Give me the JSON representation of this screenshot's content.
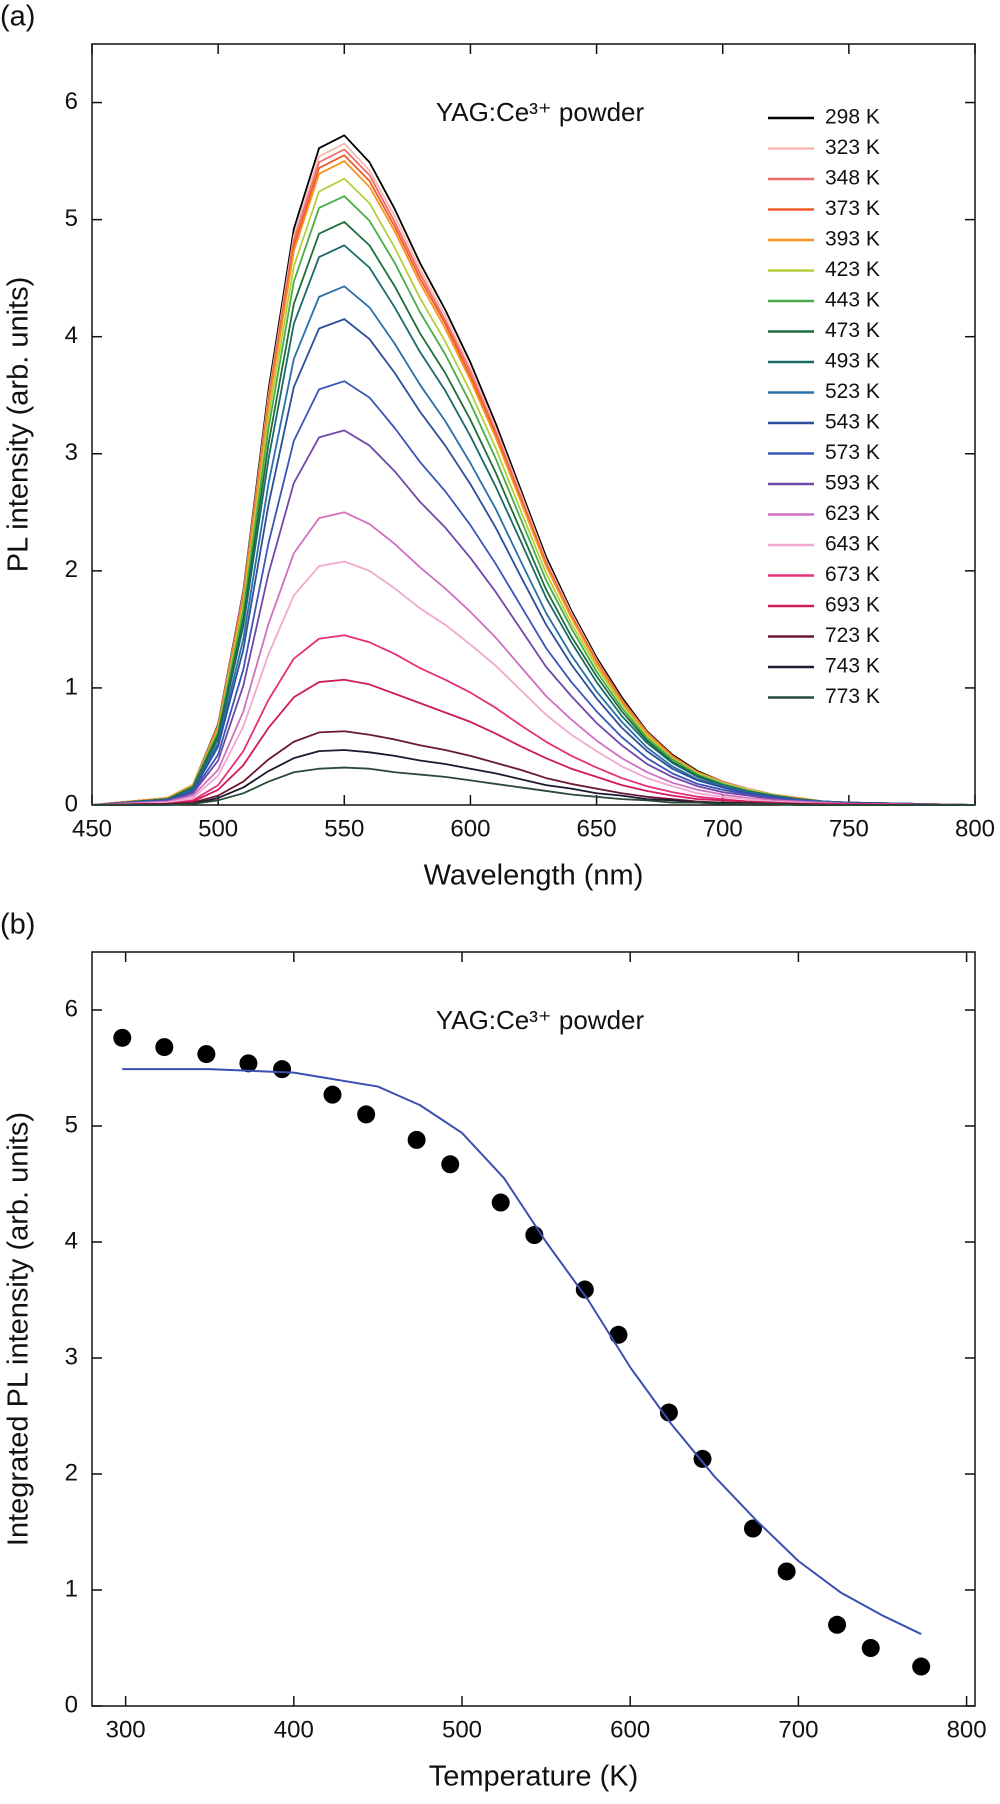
{
  "chart_data": [
    {
      "type": "line",
      "panel_label": "(a)",
      "annotation": "YAG:Ce³⁺ powder",
      "xlabel": "Wavelength (nm)",
      "ylabel": "PL intensity (arb. units)",
      "xlim": [
        450,
        800
      ],
      "ylim": [
        0,
        6.5
      ],
      "xticks": [
        450,
        500,
        550,
        600,
        650,
        700,
        750,
        800
      ],
      "yticks": [
        0,
        1,
        2,
        3,
        4,
        5,
        6
      ],
      "legend": "upper right",
      "x": [
        450,
        480,
        490,
        500,
        510,
        520,
        530,
        540,
        550,
        560,
        570,
        580,
        590,
        600,
        610,
        620,
        630,
        640,
        650,
        660,
        670,
        680,
        690,
        700,
        710,
        720,
        730,
        740,
        750,
        800
      ],
      "series": [
        {
          "name": "298 K",
          "color": "#000000",
          "values": [
            0,
            0.06,
            0.17,
            0.69,
            1.83,
            3.55,
            4.92,
            5.61,
            5.72,
            5.49,
            5.09,
            4.63,
            4.23,
            3.78,
            3.26,
            2.69,
            2.12,
            1.66,
            1.26,
            0.92,
            0.63,
            0.43,
            0.29,
            0.2,
            0.14,
            0.09,
            0.06,
            0.03,
            0.02,
            0
          ]
        },
        {
          "name": "323 K",
          "color": "#f5b9b0",
          "values": [
            0,
            0.06,
            0.17,
            0.68,
            1.81,
            3.5,
            4.86,
            5.54,
            5.65,
            5.42,
            5.03,
            4.58,
            4.18,
            3.73,
            3.22,
            2.66,
            2.09,
            1.64,
            1.24,
            0.9,
            0.62,
            0.42,
            0.28,
            0.2,
            0.14,
            0.09,
            0.06,
            0.03,
            0.02,
            0
          ]
        },
        {
          "name": "348 K",
          "color": "#f06a6a",
          "values": [
            0,
            0.06,
            0.17,
            0.67,
            1.79,
            3.47,
            4.82,
            5.49,
            5.6,
            5.38,
            4.98,
            4.54,
            4.14,
            3.7,
            3.19,
            2.63,
            2.07,
            1.62,
            1.23,
            0.9,
            0.62,
            0.42,
            0.28,
            0.2,
            0.13,
            0.09,
            0.06,
            0.03,
            0.02,
            0
          ]
        },
        {
          "name": "373 K",
          "color": "#f05a28",
          "values": [
            0,
            0.06,
            0.17,
            0.67,
            1.78,
            3.44,
            4.77,
            5.44,
            5.55,
            5.33,
            4.94,
            4.5,
            4.11,
            3.66,
            3.16,
            2.61,
            2.05,
            1.61,
            1.22,
            0.89,
            0.61,
            0.42,
            0.28,
            0.19,
            0.13,
            0.09,
            0.06,
            0.03,
            0.02,
            0
          ]
        },
        {
          "name": "393 K",
          "color": "#f7941d",
          "values": [
            0,
            0.06,
            0.17,
            0.66,
            1.76,
            3.41,
            4.73,
            5.39,
            5.5,
            5.28,
            4.9,
            4.46,
            4.07,
            3.63,
            3.14,
            2.59,
            2.04,
            1.6,
            1.21,
            0.88,
            0.61,
            0.41,
            0.28,
            0.19,
            0.13,
            0.09,
            0.06,
            0.03,
            0.02,
            0
          ]
        },
        {
          "name": "423 K",
          "color": "#b5cf3b",
          "values": [
            0,
            0.05,
            0.16,
            0.64,
            1.71,
            3.32,
            4.6,
            5.24,
            5.35,
            5.14,
            4.76,
            4.33,
            3.96,
            3.53,
            3.05,
            2.51,
            1.98,
            1.55,
            1.18,
            0.86,
            0.59,
            0.4,
            0.27,
            0.19,
            0.13,
            0.09,
            0.05,
            0.03,
            0.02,
            0
          ]
        },
        {
          "name": "443 K",
          "color": "#4aac48",
          "values": [
            0,
            0.05,
            0.16,
            0.62,
            1.66,
            3.22,
            4.47,
            5.1,
            5.2,
            4.99,
            4.63,
            4.21,
            3.85,
            3.43,
            2.96,
            2.44,
            1.92,
            1.51,
            1.14,
            0.83,
            0.57,
            0.39,
            0.26,
            0.18,
            0.12,
            0.08,
            0.05,
            0.03,
            0.02,
            0
          ]
        },
        {
          "name": "473 K",
          "color": "#1f6e3a",
          "values": [
            0,
            0.05,
            0.15,
            0.6,
            1.59,
            3.09,
            4.28,
            4.88,
            4.98,
            4.78,
            4.43,
            4.03,
            3.69,
            3.29,
            2.84,
            2.34,
            1.84,
            1.44,
            1.1,
            0.8,
            0.55,
            0.37,
            0.25,
            0.17,
            0.12,
            0.08,
            0.05,
            0.03,
            0.02,
            0
          ]
        },
        {
          "name": "493 K",
          "color": "#1a6a6a",
          "values": [
            0,
            0.05,
            0.14,
            0.57,
            1.53,
            2.96,
            4.11,
            4.68,
            4.78,
            4.59,
            4.25,
            3.87,
            3.54,
            3.15,
            2.72,
            2.25,
            1.77,
            1.39,
            1.05,
            0.76,
            0.53,
            0.36,
            0.24,
            0.17,
            0.11,
            0.08,
            0.05,
            0.03,
            0.02,
            0
          ]
        },
        {
          "name": "523 K",
          "color": "#2a6fa8",
          "values": [
            0,
            0.04,
            0.13,
            0.53,
            1.42,
            2.75,
            3.81,
            4.34,
            4.43,
            4.25,
            3.94,
            3.59,
            3.28,
            2.92,
            2.53,
            2.08,
            1.64,
            1.28,
            0.97,
            0.71,
            0.49,
            0.33,
            0.22,
            0.16,
            0.11,
            0.07,
            0.04,
            0.03,
            0.02,
            0
          ]
        },
        {
          "name": "543 K",
          "color": "#2b4f9a",
          "values": [
            0,
            0.04,
            0.12,
            0.5,
            1.33,
            2.57,
            3.57,
            4.07,
            4.15,
            3.98,
            3.69,
            3.36,
            3.07,
            2.74,
            2.37,
            1.95,
            1.54,
            1.2,
            0.91,
            0.66,
            0.46,
            0.31,
            0.21,
            0.15,
            0.1,
            0.07,
            0.04,
            0.02,
            0.02,
            0
          ]
        },
        {
          "name": "573 K",
          "color": "#3a55b8",
          "values": [
            0,
            0.04,
            0.11,
            0.43,
            1.16,
            2.24,
            3.11,
            3.55,
            3.62,
            3.48,
            3.22,
            2.93,
            2.68,
            2.39,
            2.06,
            1.7,
            1.34,
            1.05,
            0.8,
            0.58,
            0.4,
            0.27,
            0.18,
            0.13,
            0.09,
            0.06,
            0.04,
            0.02,
            0.01,
            0
          ]
        },
        {
          "name": "593 K",
          "color": "#7048a8",
          "values": [
            0,
            0.03,
            0.1,
            0.38,
            1.02,
            1.98,
            2.75,
            3.14,
            3.2,
            3.07,
            2.85,
            2.59,
            2.37,
            2.11,
            1.82,
            1.5,
            1.18,
            0.93,
            0.7,
            0.51,
            0.35,
            0.24,
            0.16,
            0.11,
            0.08,
            0.05,
            0.03,
            0.02,
            0.01,
            0
          ]
        },
        {
          "name": "623 K",
          "color": "#d070c0",
          "values": [
            0,
            0.03,
            0.08,
            0.3,
            0.8,
            1.55,
            2.15,
            2.45,
            2.5,
            2.4,
            2.23,
            2.03,
            1.85,
            1.65,
            1.43,
            1.18,
            0.93,
            0.73,
            0.55,
            0.4,
            0.28,
            0.19,
            0.13,
            0.09,
            0.06,
            0.04,
            0.03,
            0.02,
            0.01,
            0
          ]
        },
        {
          "name": "643 K",
          "color": "#f2a8d0",
          "values": [
            0,
            0.02,
            0.06,
            0.25,
            0.67,
            1.29,
            1.79,
            2.04,
            2.08,
            2,
            1.85,
            1.68,
            1.54,
            1.37,
            1.19,
            0.98,
            0.77,
            0.6,
            0.46,
            0.33,
            0.23,
            0.16,
            0.1,
            0.07,
            0.05,
            0.03,
            0.02,
            0.01,
            0.01,
            0
          ]
        },
        {
          "name": "673 K",
          "color": "#e8307a",
          "values": [
            0,
            0.01,
            0.04,
            0.17,
            0.46,
            0.9,
            1.25,
            1.42,
            1.45,
            1.39,
            1.29,
            1.17,
            1.07,
            0.96,
            0.83,
            0.68,
            0.54,
            0.42,
            0.32,
            0.23,
            0.16,
            0.11,
            0.07,
            0.05,
            0.03,
            0.02,
            0.01,
            0.01,
            0.01,
            0
          ]
        },
        {
          "name": "693 K",
          "color": "#d01a5a",
          "values": [
            0,
            0.01,
            0.03,
            0.13,
            0.34,
            0.66,
            0.92,
            1.05,
            1.07,
            1.03,
            0.95,
            0.87,
            0.79,
            0.71,
            0.61,
            0.5,
            0.4,
            0.31,
            0.24,
            0.17,
            0.12,
            0.08,
            0.05,
            0.04,
            0.03,
            0.02,
            0.01,
            0.01,
            0,
            0
          ]
        },
        {
          "name": "723 K",
          "color": "#6a1830",
          "values": [
            0,
            0.01,
            0.02,
            0.08,
            0.2,
            0.39,
            0.54,
            0.62,
            0.63,
            0.6,
            0.56,
            0.51,
            0.47,
            0.42,
            0.36,
            0.3,
            0.23,
            0.18,
            0.14,
            0.1,
            0.07,
            0.05,
            0.03,
            0.02,
            0.02,
            0.01,
            0.01,
            0,
            0,
            0
          ]
        },
        {
          "name": "743 K",
          "color": "#1a1a30",
          "values": [
            0,
            0,
            0.01,
            0.06,
            0.15,
            0.29,
            0.4,
            0.46,
            0.47,
            0.45,
            0.42,
            0.38,
            0.35,
            0.31,
            0.27,
            0.22,
            0.17,
            0.14,
            0.1,
            0.08,
            0.05,
            0.04,
            0.02,
            0.02,
            0.01,
            0.01,
            0,
            0,
            0,
            0
          ]
        },
        {
          "name": "773 K",
          "color": "#2a4a3a",
          "values": [
            0,
            0,
            0.01,
            0.04,
            0.1,
            0.2,
            0.28,
            0.31,
            0.32,
            0.31,
            0.28,
            0.26,
            0.24,
            0.21,
            0.18,
            0.15,
            0.12,
            0.09,
            0.07,
            0.05,
            0.04,
            0.02,
            0.02,
            0.01,
            0.01,
            0.01,
            0,
            0,
            0,
            0
          ]
        }
      ]
    },
    {
      "type": "scatter",
      "panel_label": "(b)",
      "annotation": "YAG:Ce³⁺ powder",
      "xlabel": "Temperature (K)",
      "ylabel": "Integrated PL intensity (arb. units)",
      "xlim": [
        280,
        805
      ],
      "ylim": [
        0,
        6.5
      ],
      "xticks": [
        300,
        400,
        500,
        600,
        700,
        800
      ],
      "yticks": [
        0,
        1,
        2,
        3,
        4,
        5,
        6
      ],
      "series": [
        {
          "type": "scatter",
          "color": "#000000",
          "x": [
            298,
            323,
            348,
            373,
            393,
            423,
            443,
            473,
            493,
            523,
            543,
            573,
            593,
            623,
            643,
            673,
            693,
            723,
            743,
            773
          ],
          "values": [
            5.76,
            5.68,
            5.62,
            5.54,
            5.49,
            5.27,
            5.1,
            4.88,
            4.67,
            4.34,
            4.06,
            3.59,
            3.2,
            2.53,
            2.13,
            1.53,
            1.16,
            0.7,
            0.5,
            0.34
          ]
        },
        {
          "type": "line",
          "color": "#3a4fb0",
          "x": [
            298,
            350,
            400,
            450,
            475,
            500,
            525,
            550,
            575,
            600,
            625,
            650,
            675,
            700,
            725,
            750,
            773
          ],
          "values": [
            5.49,
            5.49,
            5.46,
            5.34,
            5.18,
            4.94,
            4.55,
            4.0,
            3.5,
            2.92,
            2.42,
            1.98,
            1.6,
            1.25,
            0.98,
            0.78,
            0.62
          ]
        }
      ]
    }
  ]
}
